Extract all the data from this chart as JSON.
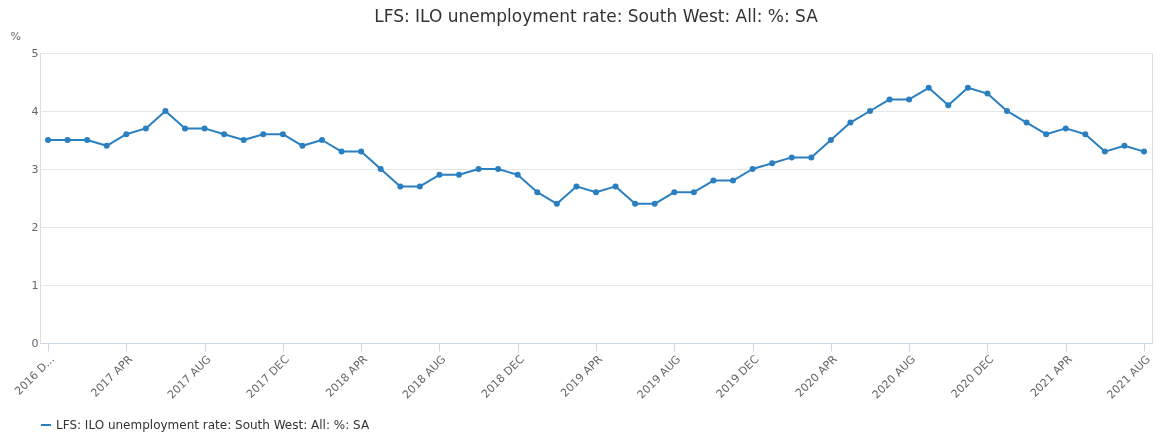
{
  "chart_data": {
    "type": "line",
    "title": "LFS: ILO unemployment rate: South West: All: %: SA",
    "ylabel": "%",
    "categories": [
      "2016 D...",
      null,
      null,
      null,
      "2017 APR",
      null,
      null,
      null,
      "2017 AUG",
      null,
      null,
      null,
      "2017 DEC",
      null,
      null,
      null,
      "2018 APR",
      null,
      null,
      null,
      "2018 AUG",
      null,
      null,
      null,
      "2018 DEC",
      null,
      null,
      null,
      "2019 APR",
      null,
      null,
      null,
      "2019 AUG",
      null,
      null,
      null,
      "2019 DEC",
      null,
      null,
      null,
      "2020 APR",
      null,
      null,
      null,
      "2020 AUG",
      null,
      null,
      null,
      "2020 DEC",
      null,
      null,
      null,
      "2021 APR",
      null,
      null,
      null,
      "2021 AUG"
    ],
    "series": [
      {
        "name": "LFS: ILO unemployment rate: South West: All: %: SA",
        "color": "#2a7fc1",
        "values": [
          3.5,
          3.5,
          3.5,
          3.4,
          3.6,
          3.7,
          4.0,
          3.7,
          3.7,
          3.6,
          3.5,
          3.6,
          3.6,
          3.4,
          3.5,
          3.3,
          3.3,
          3.0,
          2.7,
          2.7,
          2.9,
          2.9,
          3.0,
          3.0,
          2.9,
          2.6,
          2.4,
          2.7,
          2.6,
          2.7,
          2.4,
          2.4,
          2.6,
          2.6,
          2.8,
          2.8,
          3.0,
          3.1,
          3.2,
          3.2,
          3.5,
          3.8,
          4.0,
          4.2,
          4.2,
          4.4,
          4.1,
          4.4,
          4.3,
          4.0,
          3.8,
          3.6,
          3.7,
          3.6,
          3.3,
          3.4,
          3.3
        ]
      }
    ],
    "ylim": [
      0,
      5
    ],
    "yticks": [
      0,
      1,
      2,
      3,
      4,
      5
    ],
    "grid": "y",
    "legend": "bottom",
    "marker": "circle",
    "line_style": "solid"
  }
}
